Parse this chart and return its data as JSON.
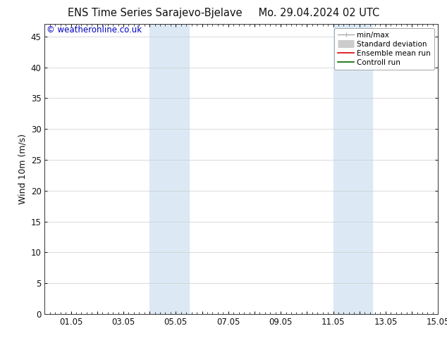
{
  "title_left": "ENS Time Series Sarajevo-Bjelave",
  "title_right": "Mo. 29.04.2024 02 UTC",
  "ylabel": "Wind 10m (m/s)",
  "watermark": "© weatheronline.co.uk",
  "xlim": [
    0,
    15
  ],
  "ylim": [
    0,
    47
  ],
  "yticks": [
    0,
    5,
    10,
    15,
    20,
    25,
    30,
    35,
    40,
    45
  ],
  "xtick_positions": [
    0,
    1,
    2,
    3,
    4,
    5,
    6,
    7,
    8,
    9,
    10,
    11,
    12,
    13,
    14,
    15
  ],
  "xtick_labels": [
    "",
    "01.05",
    "",
    "03.05",
    "",
    "05.05",
    "",
    "07.05",
    "",
    "09.05",
    "",
    "11.05",
    "",
    "13.05",
    "",
    "15.05"
  ],
  "shaded_regions": [
    {
      "xmin": 4.0,
      "xmax": 5.5,
      "color": "#dce9f5"
    },
    {
      "xmin": 11.0,
      "xmax": 12.5,
      "color": "#dce9f5"
    }
  ],
  "legend_items": [
    {
      "label": "min/max",
      "color": "#aaaaaa",
      "lw": 1.0,
      "style": "minmax"
    },
    {
      "label": "Standard deviation",
      "color": "#cccccc",
      "lw": 8,
      "style": "thick"
    },
    {
      "label": "Ensemble mean run",
      "color": "#dd0000",
      "lw": 1.2,
      "style": "solid"
    },
    {
      "label": "Controll run",
      "color": "#006600",
      "lw": 1.2,
      "style": "solid"
    }
  ],
  "background_color": "#ffffff",
  "plot_bg_color": "#ffffff",
  "font_color": "#111111",
  "watermark_color": "#0000bb",
  "title_fontsize": 10.5,
  "label_fontsize": 9,
  "tick_fontsize": 8.5,
  "legend_fontsize": 7.5,
  "watermark_fontsize": 8.5
}
